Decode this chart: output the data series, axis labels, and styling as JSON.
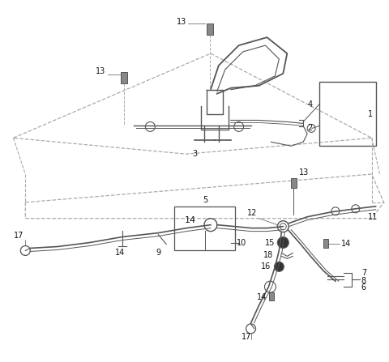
{
  "background_color": "#ffffff",
  "line_color": "#555555",
  "dashed_color": "#aaaaaa",
  "label_color": "#111111",
  "figsize": [
    4.8,
    4.47
  ],
  "dpi": 100
}
